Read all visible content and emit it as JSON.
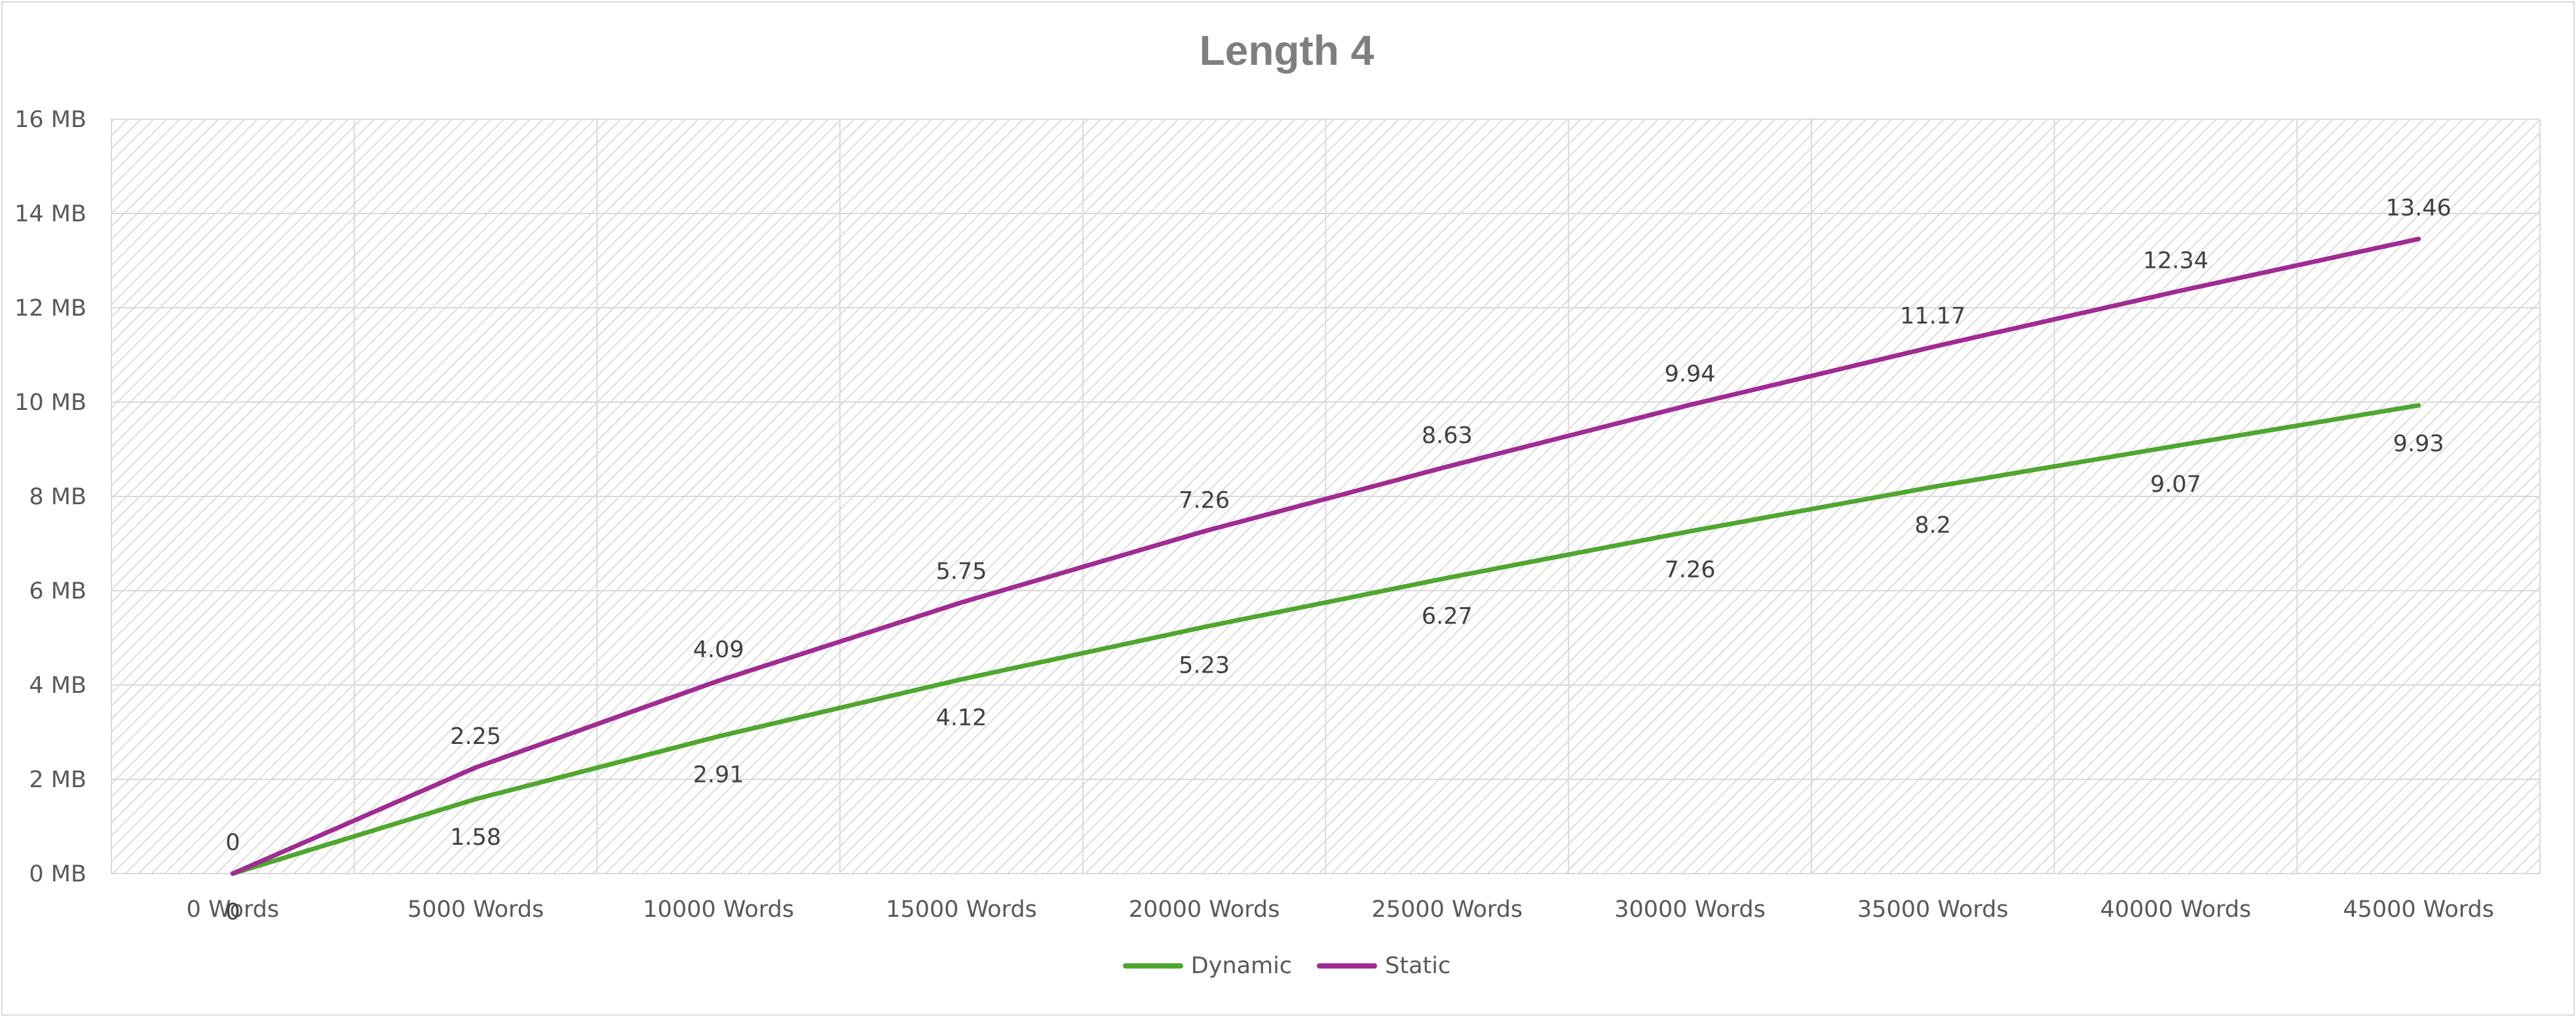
{
  "chart_data": {
    "type": "line",
    "title": "Length 4",
    "xlabel": "",
    "ylabel": "",
    "categories": [
      "0 Words",
      "5000 Words",
      "10000 Words",
      "15000 Words",
      "20000 Words",
      "25000 Words",
      "30000 Words",
      "35000 Words",
      "40000 Words",
      "45000 Words"
    ],
    "yticks": [
      "0 MB",
      "2 MB",
      "4 MB",
      "6 MB",
      "8 MB",
      "10 MB",
      "12 MB",
      "14 MB",
      "16 MB"
    ],
    "ylim": [
      0,
      16
    ],
    "grid": true,
    "legend_position": "bottom",
    "series": [
      {
        "name": "Dynamic",
        "color": "#4ea72e",
        "values": [
          0,
          1.58,
          2.91,
          4.12,
          5.23,
          6.27,
          7.26,
          8.2,
          9.07,
          9.93
        ],
        "labels": [
          "0",
          "1.58",
          "2.91",
          "4.12",
          "5.23",
          "6.27",
          "7.26",
          "8.2",
          "9.07",
          "9.93"
        ]
      },
      {
        "name": "Static",
        "color": "#a02b93",
        "values": [
          0,
          2.25,
          4.09,
          5.75,
          7.26,
          8.63,
          9.94,
          11.17,
          12.34,
          13.46
        ],
        "labels": [
          "0",
          "2.25",
          "4.09",
          "5.75",
          "7.26",
          "8.63",
          "9.94",
          "11.17",
          "12.34",
          "13.46"
        ]
      }
    ]
  }
}
